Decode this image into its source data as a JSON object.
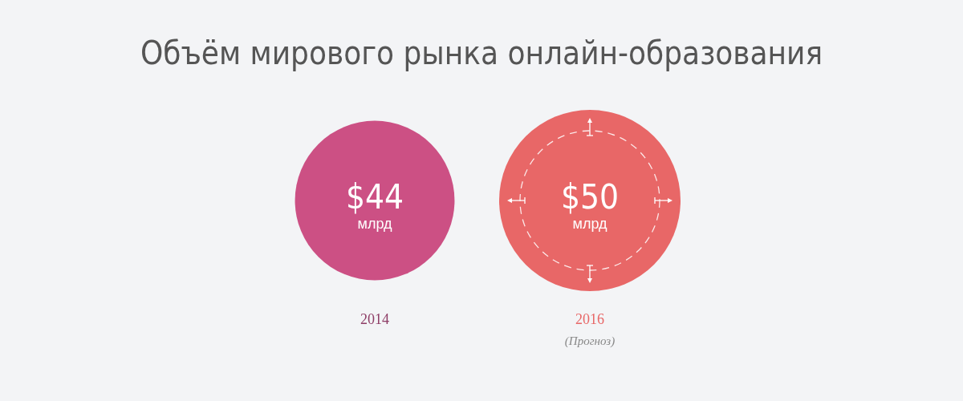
{
  "chart_data": {
    "type": "other",
    "title": "Объём мирового рынка онлайн-образования",
    "categories": [
      "2014",
      "2016"
    ],
    "values": [
      44,
      50
    ],
    "value_labels": [
      "$44",
      "$50"
    ],
    "colors": [
      "#cc5084",
      "#e86767"
    ],
    "annotations": [
      "млрд",
      "млрд",
      "(Прогноз)"
    ]
  }
}
